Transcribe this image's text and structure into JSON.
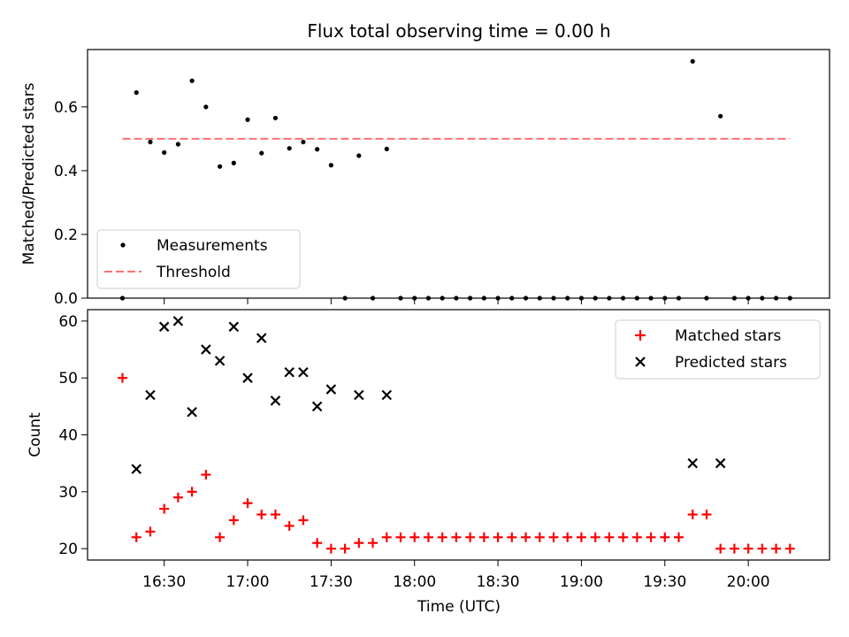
{
  "chart_data": [
    {
      "type": "scatter",
      "title": "Flux total observing time = 0.00 h",
      "xlabel": "",
      "ylabel": "Matched/Predicted stars",
      "ylim": [
        0,
        0.78
      ],
      "yticks": [
        "0.0",
        "0.2",
        "0.4",
        "0.6"
      ],
      "threshold": {
        "name": "Threshold",
        "value": 0.5,
        "x_start": "16:15",
        "x_end": "20:15",
        "color": "#ff7070"
      },
      "legend_position": "lower-left",
      "series": [
        {
          "name": "Measurements",
          "color": "#000000",
          "x": [
            "16:15",
            "16:20",
            "16:25",
            "16:30",
            "16:35",
            "16:40",
            "16:45",
            "16:50",
            "16:55",
            "17:00",
            "17:05",
            "17:10",
            "17:15",
            "17:20",
            "17:25",
            "17:30",
            "17:35",
            "17:40",
            "17:45",
            "17:50",
            "17:55",
            "18:00",
            "18:05",
            "18:10",
            "18:15",
            "18:20",
            "18:25",
            "18:30",
            "18:35",
            "18:40",
            "18:45",
            "18:50",
            "18:55",
            "19:00",
            "19:05",
            "19:10",
            "19:15",
            "19:20",
            "19:25",
            "19:30",
            "19:35",
            "19:40",
            "19:45",
            "19:50",
            "19:55",
            "20:00",
            "20:05",
            "20:10",
            "20:15"
          ],
          "y": [
            0.0,
            0.645,
            0.49,
            0.457,
            0.483,
            0.682,
            0.6,
            0.413,
            0.424,
            0.56,
            0.455,
            0.565,
            0.47,
            0.49,
            0.467,
            0.417,
            0.0,
            0.447,
            0.0,
            0.468,
            0.0,
            0.0,
            0.0,
            0.0,
            0.0,
            0.0,
            0.0,
            0.0,
            0.0,
            0.0,
            0.0,
            0.0,
            0.0,
            0.0,
            0.0,
            0.0,
            0.0,
            0.0,
            0.0,
            0.0,
            0.0,
            0.743,
            0.0,
            0.571,
            0.0,
            0.0,
            0.0,
            0.0,
            0.0
          ]
        }
      ]
    },
    {
      "type": "scatter",
      "title": "",
      "xlabel": "Time (UTC)",
      "ylabel": "Count",
      "ylim": [
        18,
        62
      ],
      "yticks": [
        "20",
        "30",
        "40",
        "50",
        "60"
      ],
      "xticks": [
        "16:30",
        "17:00",
        "17:30",
        "18:00",
        "18:30",
        "19:00",
        "19:30",
        "20:00"
      ],
      "legend_position": "upper-right",
      "series": [
        {
          "name": "Matched stars",
          "marker": "+",
          "color": "#ff0000",
          "x": [
            "16:15",
            "16:20",
            "16:25",
            "16:30",
            "16:35",
            "16:40",
            "16:45",
            "16:50",
            "16:55",
            "17:00",
            "17:05",
            "17:10",
            "17:15",
            "17:20",
            "17:25",
            "17:30",
            "17:35",
            "17:40",
            "17:45",
            "17:50",
            "17:55",
            "18:00",
            "18:05",
            "18:10",
            "18:15",
            "18:20",
            "18:25",
            "18:30",
            "18:35",
            "18:40",
            "18:45",
            "18:50",
            "18:55",
            "19:00",
            "19:05",
            "19:10",
            "19:15",
            "19:20",
            "19:25",
            "19:30",
            "19:35",
            "19:40",
            "19:45",
            "19:50",
            "19:55",
            "20:00",
            "20:05",
            "20:10",
            "20:15"
          ],
          "y": [
            50,
            22,
            23,
            27,
            29,
            30,
            33,
            22,
            25,
            28,
            26,
            26,
            24,
            25,
            21,
            20,
            20,
            21,
            21,
            22,
            22,
            22,
            22,
            22,
            22,
            22,
            22,
            22,
            22,
            22,
            22,
            22,
            22,
            22,
            22,
            22,
            22,
            22,
            22,
            22,
            22,
            26,
            26,
            20,
            20,
            20,
            20,
            20,
            20
          ]
        },
        {
          "name": "Predicted stars",
          "marker": "x",
          "color": "#000000",
          "x": [
            "16:20",
            "16:25",
            "16:30",
            "16:35",
            "16:40",
            "16:45",
            "16:50",
            "16:55",
            "17:00",
            "17:05",
            "17:10",
            "17:15",
            "17:20",
            "17:25",
            "17:30",
            "17:40",
            "17:50",
            "19:40",
            "19:50"
          ],
          "y": [
            34,
            47,
            59,
            60,
            44,
            55,
            53,
            59,
            50,
            57,
            46,
            51,
            51,
            45,
            48,
            47,
            47,
            35,
            35
          ]
        }
      ]
    }
  ]
}
